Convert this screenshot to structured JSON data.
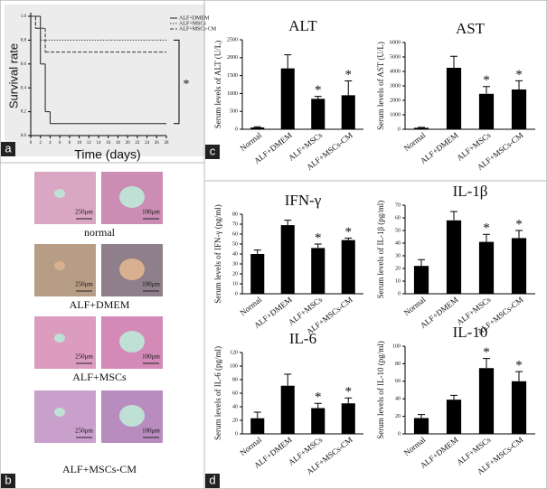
{
  "panel_labels": [
    "a",
    "b",
    "c",
    "d"
  ],
  "histology": {
    "scale_bars": [
      "250μm",
      "100μm"
    ],
    "rows": [
      {
        "label": "normal"
      },
      {
        "label": "ALF+DMEM"
      },
      {
        "label": "ALF+MSCs"
      },
      {
        "label": "ALF+MSCs-CM"
      }
    ]
  },
  "chart_data": [
    {
      "type": "line",
      "ylabel": "Survival rate",
      "xlabel": "Time (days)",
      "annotation": "*",
      "legend": "upper right",
      "xlim": [
        0,
        28
      ],
      "xticks": [
        0,
        2,
        4,
        6,
        8,
        10,
        12,
        14,
        16,
        18,
        20,
        22,
        24,
        26,
        28
      ],
      "ylim": [
        0,
        1
      ],
      "yticks": [
        {
          "value": 0,
          "label": "0.0"
        },
        {
          "value": 0.2,
          "label": "0.2"
        },
        {
          "value": 0.4,
          "label": "0.4"
        },
        {
          "value": 0.6,
          "label": "0.6"
        },
        {
          "value": 0.8,
          "label": "0.8"
        },
        {
          "value": 1,
          "label": "1.0"
        }
      ],
      "series": [
        {
          "name": "ALF+DMEM",
          "color": "#222222",
          "dash": "solid",
          "x": [
            0,
            2,
            3,
            4,
            28
          ],
          "values": [
            1,
            0.6,
            0.2,
            0.1,
            0.1
          ]
        },
        {
          "name": "ALF+MSCs",
          "color": "#444444",
          "dash": "dotted",
          "x": [
            0,
            1,
            2,
            28
          ],
          "values": [
            1,
            0.9,
            0.8,
            0.8
          ]
        },
        {
          "name": "ALF+MSCs-CM",
          "color": "#333333",
          "dash": "dashed",
          "x": [
            0,
            1,
            3,
            28
          ],
          "values": [
            1,
            0.9,
            0.7,
            0.7
          ]
        }
      ]
    },
    {
      "type": "bar",
      "title": "ALT",
      "ylabel": "Serum levels of ALT (U/L)",
      "grid": false,
      "color": "#000000",
      "categories": [
        "Normal",
        "ALF+DMEM",
        "ALF+MSCs",
        "ALF+MSCs-CM"
      ],
      "values": [
        50,
        1700,
        850,
        950
      ],
      "errors": [
        20,
        380,
        70,
        400
      ],
      "markers": [
        null,
        null,
        "*",
        "*"
      ],
      "ylim": [
        0,
        2500
      ],
      "yticks": [
        0,
        500,
        1000,
        1500,
        2000,
        2500
      ]
    },
    {
      "type": "bar",
      "title": "AST",
      "ylabel": "Serum levels of AST (U/L)",
      "grid": false,
      "color": "#000000",
      "categories": [
        "Normal",
        "ALF+DMEM",
        "ALF+MSCs",
        "ALF+MSCs-CM"
      ],
      "values": [
        100,
        4250,
        2450,
        2750
      ],
      "errors": [
        30,
        800,
        500,
        600
      ],
      "markers": [
        null,
        null,
        "*",
        "*"
      ],
      "ylim": [
        0,
        6000
      ],
      "yticks": [
        0,
        1000,
        2000,
        3000,
        4000,
        5000,
        6000
      ]
    },
    {
      "type": "bar",
      "title": "IFN-γ",
      "ylabel": "Serum levels of IFN-γ (pg/ml)",
      "grid": false,
      "color": "#000000",
      "categories": [
        "Normal",
        "ALF+DMEM",
        "ALF+MSCs",
        "ALF+MSCs-CM"
      ],
      "values": [
        40,
        69,
        46,
        54
      ],
      "errors": [
        4,
        5,
        4,
        2
      ],
      "markers": [
        null,
        null,
        "*",
        "*"
      ],
      "ylim": [
        0,
        80
      ],
      "yticks": [
        0,
        10,
        20,
        30,
        40,
        50,
        60,
        70,
        80
      ]
    },
    {
      "type": "bar",
      "title": "IL-1β",
      "ylabel": "Serum levels of IL-1β (pg/ml)",
      "grid": false,
      "color": "#000000",
      "categories": [
        "Normal",
        "ALF+DMEM",
        "ALF+MSCs",
        "ALF+MSCs-CM"
      ],
      "values": [
        22,
        58,
        41,
        44
      ],
      "errors": [
        5,
        7,
        6,
        6
      ],
      "markers": [
        null,
        null,
        "*",
        "*"
      ],
      "ylim": [
        0,
        70
      ],
      "yticks": [
        0,
        10,
        20,
        30,
        40,
        50,
        60,
        70
      ]
    },
    {
      "type": "bar",
      "title": "IL-6",
      "ylabel": "Serum levels of IL-6 (pg/ml)",
      "grid": false,
      "color": "#000000",
      "categories": [
        "Normal",
        "ALF+DMEM",
        "ALF+MSCs",
        "ALF+MSCs-CM"
      ],
      "values": [
        23,
        71,
        38,
        45
      ],
      "errors": [
        9,
        17,
        7,
        8
      ],
      "markers": [
        null,
        null,
        "*",
        "*"
      ],
      "ylim": [
        0,
        120
      ],
      "yticks": [
        0,
        20,
        40,
        60,
        80,
        100,
        120
      ]
    },
    {
      "type": "bar",
      "title": "IL-10",
      "ylabel": "Serum levels of IL-10 (pg/ml)",
      "grid": false,
      "color": "#000000",
      "categories": [
        "Normal",
        "ALF+DMEM",
        "ALF+MSCs",
        "ALF+MSCs-CM"
      ],
      "values": [
        18,
        39,
        75,
        60
      ],
      "errors": [
        4,
        5,
        11,
        11
      ],
      "markers": [
        null,
        null,
        "*",
        "*"
      ],
      "ylim": [
        0,
        100
      ],
      "yticks": [
        0,
        20,
        40,
        60,
        80,
        100
      ]
    }
  ]
}
